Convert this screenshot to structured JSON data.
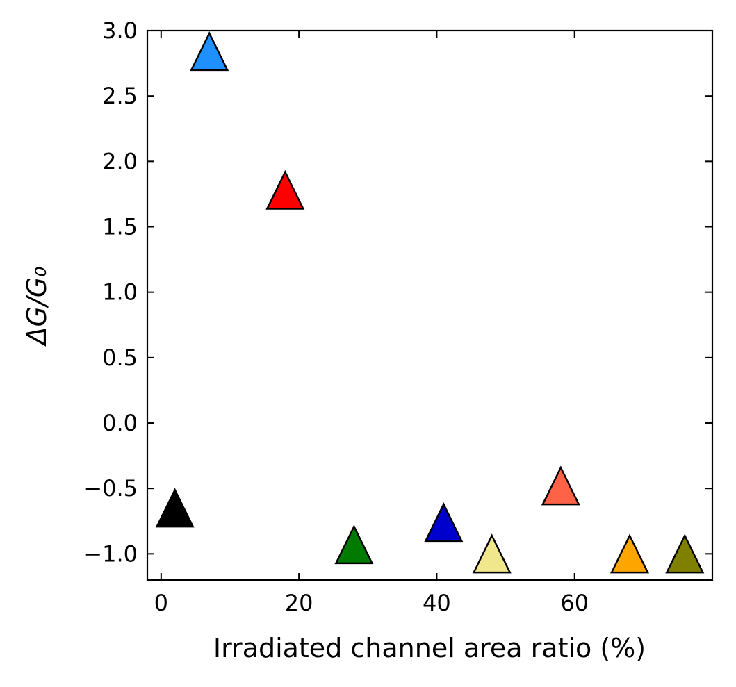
{
  "chart_data": {
    "type": "scatter",
    "title": "",
    "xlabel": "Irradiated channel area ratio (%)",
    "ylabel": "ΔG/G₀",
    "xlim": [
      -2,
      80
    ],
    "ylim": [
      -1.2,
      3.0
    ],
    "x_ticks": [
      0,
      20,
      40,
      60
    ],
    "x_tick_labels": [
      "0",
      "20",
      "40",
      "60"
    ],
    "y_ticks": [
      3.0,
      2.5,
      2.0,
      1.5,
      1.0,
      0.5,
      0.0,
      -0.5,
      -1.0
    ],
    "y_tick_labels": [
      "3.0",
      "2.5",
      "2.0",
      "1.5",
      "1.0",
      "0.5",
      "0.0",
      "−0.5",
      "−1.0"
    ],
    "grid": false,
    "marker": "triangle-up",
    "points": [
      {
        "x": 2,
        "y": -0.67,
        "color": "#000000"
      },
      {
        "x": 7,
        "y": 2.82,
        "color": "#1e90ff"
      },
      {
        "x": 18,
        "y": 1.76,
        "color": "#ff0000"
      },
      {
        "x": 28,
        "y": -0.95,
        "color": "#007a00"
      },
      {
        "x": 41,
        "y": -0.78,
        "color": "#0000cd"
      },
      {
        "x": 48,
        "y": -1.02,
        "color": "#f0e68c"
      },
      {
        "x": 58,
        "y": -0.5,
        "color": "#ff6347"
      },
      {
        "x": 68,
        "y": -1.02,
        "color": "#ffa500"
      },
      {
        "x": 76,
        "y": -1.02,
        "color": "#808000"
      }
    ]
  }
}
